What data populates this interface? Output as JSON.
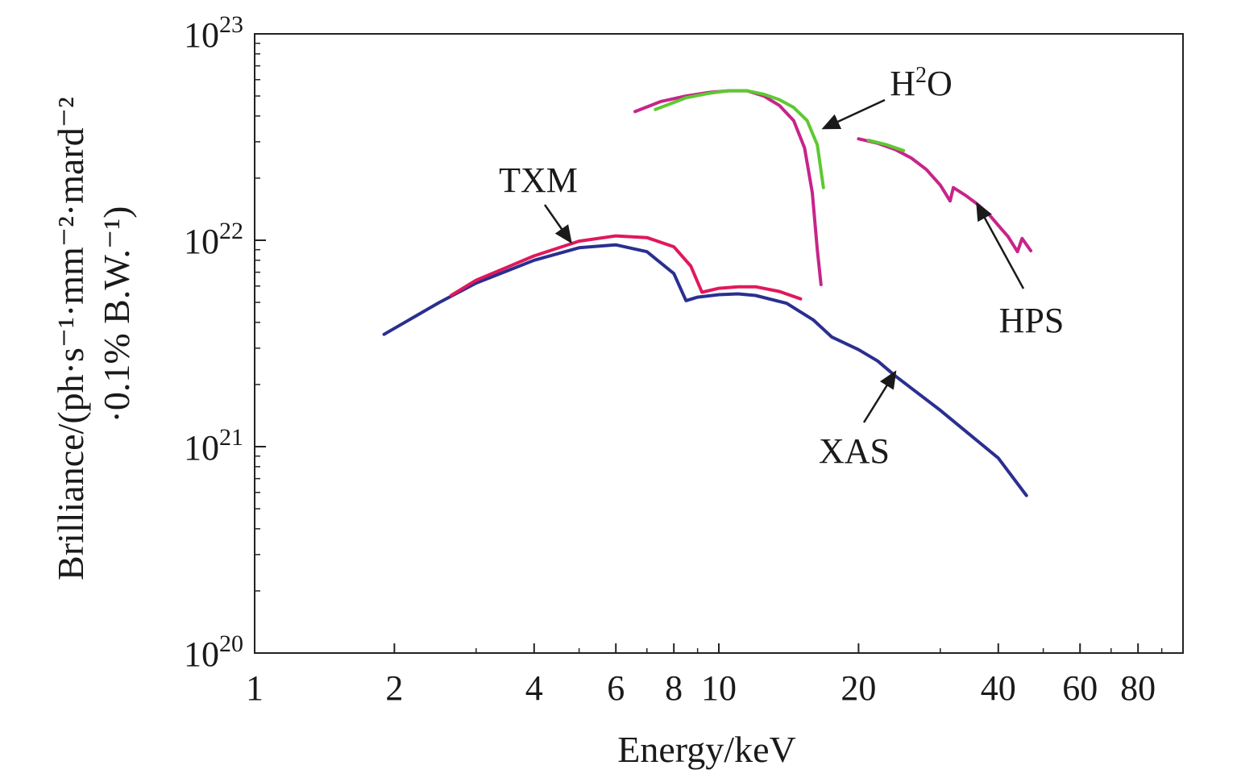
{
  "chart_data": {
    "type": "line",
    "title": "",
    "xlabel": "Energy/keV",
    "ylabel_line1": "Brilliance/(ph·s⁻¹·mm⁻²·mard⁻²",
    "ylabel_line2": "·0.1% B.W.⁻¹)",
    "xscale": "log",
    "yscale": "log",
    "xlim": [
      1,
      100
    ],
    "ylim": [
      1e+20,
      1e+23
    ],
    "x_ticks": [
      1,
      2,
      4,
      6,
      8,
      10,
      20,
      40,
      60,
      80
    ],
    "x_tick_labels": [
      "1",
      "2",
      "4",
      "6",
      "8",
      "10",
      "20",
      "40",
      "60",
      "80"
    ],
    "y_ticks": [
      1e+20,
      1e+21,
      1e+22,
      1e+23
    ],
    "y_tick_base": "10",
    "y_tick_exponents": [
      "20",
      "21",
      "22",
      "23"
    ],
    "grid": false,
    "series": [
      {
        "name": "XAS",
        "color": "#2a2f8f",
        "points": [
          [
            1.9,
            3.5e+21
          ],
          [
            2.5,
            5e+21
          ],
          [
            3.0,
            6.2e+21
          ],
          [
            4.0,
            8e+21
          ],
          [
            5.0,
            9.2e+21
          ],
          [
            6.0,
            9.5e+21
          ],
          [
            7.0,
            8.8e+21
          ],
          [
            8.0,
            6.9e+21
          ],
          [
            8.5,
            5.1e+21
          ],
          [
            9.0,
            5.3e+21
          ],
          [
            10.0,
            5.45e+21
          ],
          [
            11.0,
            5.5e+21
          ],
          [
            12.0,
            5.4e+21
          ],
          [
            14.0,
            4.95e+21
          ],
          [
            16.0,
            4.1e+21
          ],
          [
            17.5,
            3.4e+21
          ],
          [
            20.0,
            2.95e+21
          ],
          [
            22.0,
            2.6e+21
          ],
          [
            24.0,
            2.2e+21
          ],
          [
            30.0,
            1.5e+21
          ],
          [
            40.0,
            8.8e+20
          ],
          [
            46.0,
            5.8e+20
          ]
        ]
      },
      {
        "name": "TXM",
        "color": "#e0185c",
        "points": [
          [
            2.65,
            5.4e+21
          ],
          [
            3.0,
            6.4e+21
          ],
          [
            4.0,
            8.4e+21
          ],
          [
            5.0,
            9.9e+21
          ],
          [
            6.0,
            1.05e+22
          ],
          [
            7.0,
            1.03e+22
          ],
          [
            8.0,
            9.3e+21
          ],
          [
            8.7,
            7.5e+21
          ],
          [
            9.2,
            5.6e+21
          ],
          [
            10.0,
            5.85e+21
          ],
          [
            11.0,
            5.95e+21
          ],
          [
            12.0,
            5.95e+21
          ],
          [
            13.5,
            5.65e+21
          ],
          [
            15.0,
            5.2e+21
          ]
        ]
      },
      {
        "name": "H2O",
        "color": "#c7248a",
        "points": [
          [
            6.6,
            4.2e+22
          ],
          [
            7.5,
            4.7e+22
          ],
          [
            8.5,
            5e+22
          ],
          [
            9.5,
            5.2e+22
          ],
          [
            10.5,
            5.3e+22
          ],
          [
            11.5,
            5.3e+22
          ],
          [
            12.5,
            5e+22
          ],
          [
            13.5,
            4.5e+22
          ],
          [
            14.5,
            3.8e+22
          ],
          [
            15.3,
            2.8e+22
          ],
          [
            15.9,
            1.7e+22
          ],
          [
            16.3,
            9e+21
          ],
          [
            16.6,
            6.1e+21
          ]
        ]
      },
      {
        "name": "H2O",
        "color": "#5ec832",
        "points": [
          [
            7.3,
            4.3e+22
          ],
          [
            8.5,
            4.9e+22
          ],
          [
            9.5,
            5.15e+22
          ],
          [
            10.5,
            5.3e+22
          ],
          [
            11.5,
            5.3e+22
          ],
          [
            12.5,
            5.1e+22
          ],
          [
            13.5,
            4.8e+22
          ],
          [
            14.5,
            4.4e+22
          ],
          [
            15.5,
            3.8e+22
          ],
          [
            16.3,
            2.9e+22
          ],
          [
            16.8,
            1.8e+22
          ]
        ]
      },
      {
        "name": "HPS",
        "color": "#c7248a",
        "points": [
          [
            20.0,
            3.1e+22
          ],
          [
            22.0,
            2.95e+22
          ],
          [
            24.0,
            2.75e+22
          ],
          [
            26.0,
            2.5e+22
          ],
          [
            28.0,
            2.2e+22
          ],
          [
            30.0,
            1.85e+22
          ],
          [
            31.5,
            1.55e+22
          ],
          [
            32.0,
            1.8e+22
          ],
          [
            34.0,
            1.65e+22
          ],
          [
            36.0,
            1.5e+22
          ],
          [
            38.0,
            1.35e+22
          ],
          [
            40.0,
            1.18e+22
          ],
          [
            42.0,
            1.04e+22
          ],
          [
            44.0,
            8.8e+21
          ],
          [
            45.0,
            1.02e+22
          ],
          [
            47.0,
            8.9e+21
          ]
        ]
      },
      {
        "name": "HPS",
        "color": "#5ec832",
        "points": [
          [
            21.0,
            3.05e+22
          ],
          [
            23.0,
            2.9e+22
          ],
          [
            25.0,
            2.72e+22
          ]
        ]
      }
    ],
    "annotations": [
      {
        "text": "TXM",
        "target": [
          4.8,
          9.8e+21
        ]
      },
      {
        "text": "XAS",
        "target": [
          24.0,
          2.3e+21
        ]
      },
      {
        "text": "HPS",
        "target": [
          36.0,
          1.5e+22
        ]
      }
    ],
    "h2o_annotation": {
      "prefix": "H",
      "superscript": "2",
      "suffix": "O",
      "target": [
        16.4,
        3.3e+22
      ]
    }
  }
}
